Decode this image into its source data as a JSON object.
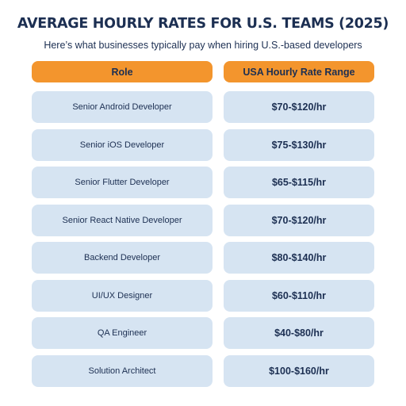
{
  "title": "AVERAGE HOURLY RATES FOR U.S. TEAMS (2025)",
  "subtitle": "Here’s what businesses typically pay when hiring U.S.-based developers",
  "table": {
    "headers": {
      "role": "Role",
      "rate": "USA Hourly Rate Range"
    },
    "rows": [
      {
        "role": "Senior Android Developer",
        "rate": "$70-$120/hr"
      },
      {
        "role": "Senior iOS Developer",
        "rate": "$75-$130/hr"
      },
      {
        "role": "Senior Flutter Developer",
        "rate": "$65-$115/hr"
      },
      {
        "role": "Senior React Native Developer",
        "rate": "$70-$120/hr"
      },
      {
        "role": "Backend Developer",
        "rate": "$80-$140/hr"
      },
      {
        "role": "UI/UX Designer",
        "rate": "$60-$110/hr"
      },
      {
        "role": "QA Engineer",
        "rate": "$40-$80/hr"
      },
      {
        "role": "Solution Architect",
        "rate": "$100-$160/hr"
      }
    ]
  },
  "colors": {
    "header_bg": "#f3952d",
    "cell_bg": "#d6e4f2",
    "text": "#1c2f52"
  }
}
